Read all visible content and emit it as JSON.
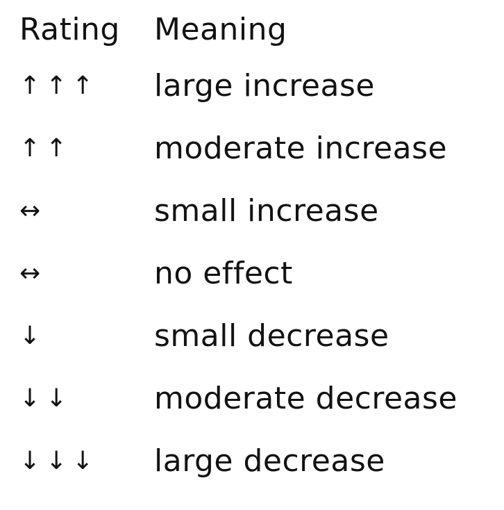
{
  "colors": {
    "background": "#ffffff",
    "text": "#121212"
  },
  "table": {
    "headers": {
      "rating": "Rating",
      "meaning": "Meaning"
    },
    "rows": [
      {
        "rating": "↑↑↑",
        "meaning": "large increase"
      },
      {
        "rating": "↑↑",
        "meaning": "moderate increase"
      },
      {
        "rating": "↔",
        "meaning": "small increase"
      },
      {
        "rating": "↔",
        "meaning": "no effect"
      },
      {
        "rating": "↓",
        "meaning": "small decrease"
      },
      {
        "rating": "↓↓",
        "meaning": "moderate decrease"
      },
      {
        "rating": "↓↓↓",
        "meaning": "large decrease"
      }
    ]
  }
}
